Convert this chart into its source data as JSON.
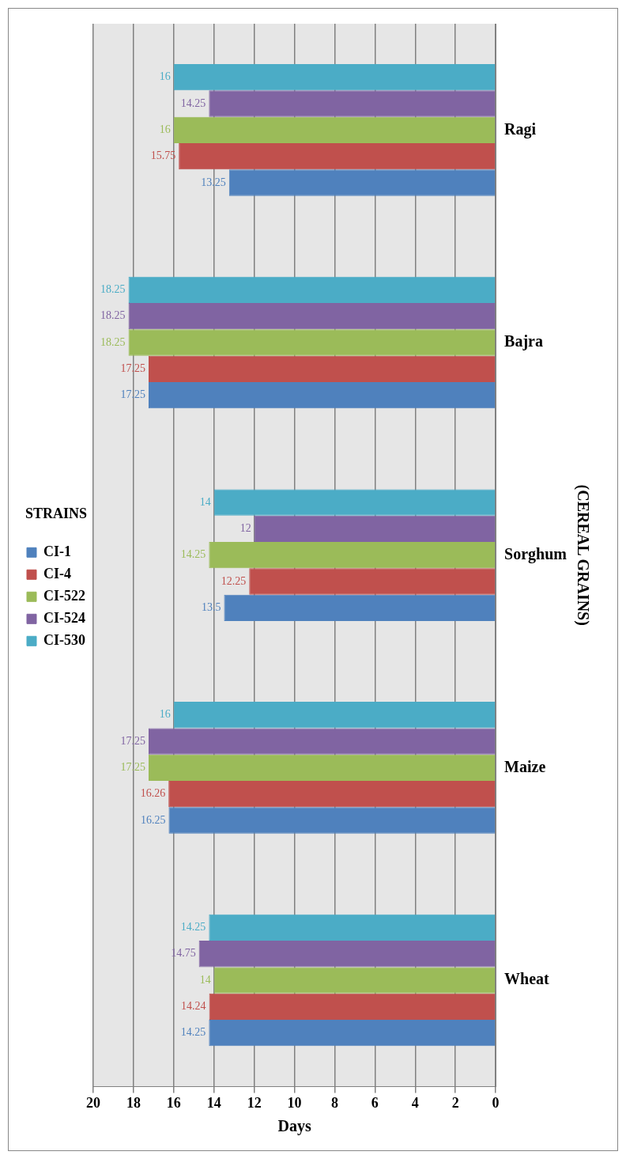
{
  "chart_data": {
    "type": "bar",
    "orientation": "horizontal",
    "legend_title": "STRAINS",
    "ylabel": "(CEREAL GRAINS)",
    "xlabel": "Days",
    "categories": [
      "Ragi",
      "Bajra",
      "Sorghum",
      "Maize",
      "Wheat"
    ],
    "series": [
      {
        "name": "CI-1",
        "color": "#4f81bd",
        "values": [
          13.25,
          17.25,
          13.5,
          16.25,
          14.25
        ]
      },
      {
        "name": "CI-4",
        "color": "#c0504d",
        "values": [
          15.75,
          17.25,
          12.25,
          16.26,
          14.24
        ]
      },
      {
        "name": "CI-522",
        "color": "#9bbb59",
        "values": [
          16,
          18.25,
          14.25,
          17.25,
          14
        ]
      },
      {
        "name": "CI-524",
        "color": "#8064a2",
        "values": [
          14.25,
          18.25,
          12,
          17.25,
          14.75
        ]
      },
      {
        "name": "CI-530",
        "color": "#4bacc6",
        "values": [
          16,
          18.25,
          14,
          16,
          14.25
        ]
      }
    ],
    "xlim": [
      20,
      0
    ],
    "xticks": [
      20,
      18,
      16,
      14,
      12,
      10,
      8,
      6,
      4,
      2,
      0
    ],
    "grid": "x",
    "legend": "left",
    "data_labels": true
  }
}
